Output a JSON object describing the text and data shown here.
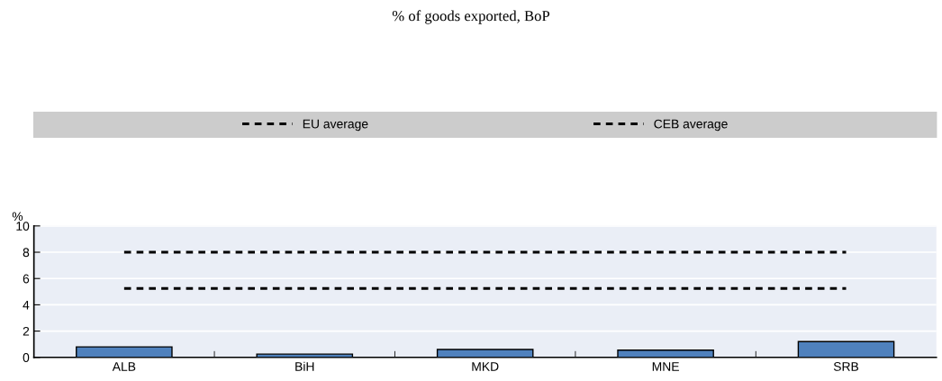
{
  "chart_data": {
    "type": "bar",
    "title": "% of goods exported, BoP",
    "ylabel": "%",
    "categories": [
      "ALB",
      "BiH",
      "MKD",
      "MNE",
      "SRB"
    ],
    "series": [
      {
        "color": "#4f81bd",
        "values": [
          0.8,
          0.25,
          0.6,
          0.55,
          1.2
        ]
      },
      {
        "type": "line",
        "name": "EU average",
        "color": "#000000",
        "line_style": "dashed",
        "values": [
          8.0,
          8.0,
          8.0,
          8.0,
          8.0
        ]
      },
      {
        "type": "line",
        "name": "CEB average",
        "color": "#000000",
        "line_style": "dashed",
        "values": [
          5.25,
          5.25,
          5.25,
          5.25,
          5.25
        ]
      }
    ],
    "ylim": [
      0,
      10
    ],
    "yticks": [
      0,
      2,
      4,
      6,
      8,
      10
    ],
    "grid": "y",
    "legend": "top",
    "marker": "none"
  }
}
